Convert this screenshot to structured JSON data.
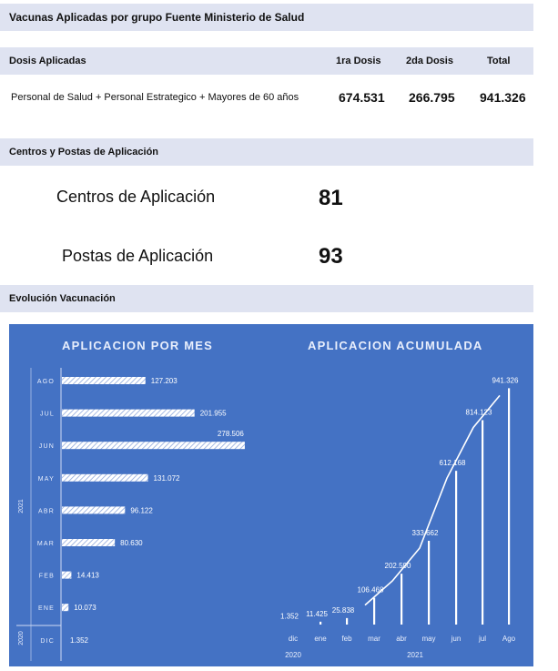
{
  "header": {
    "title": "Vacunas Aplicadas por grupo Fuente Ministerio de Salud"
  },
  "doses": {
    "header": {
      "label": "Dosis Aplicadas",
      "col1": "1ra Dosis",
      "col2": "2da Dosis",
      "col3": "Total"
    },
    "row": {
      "group": "Personal de Salud + Personal Estrategico + Mayores de 60 años",
      "dose1": "674.531",
      "dose2": "266.795",
      "total": "941.326"
    }
  },
  "centers": {
    "header": "Centros y Postas de Aplicación",
    "centers_label": "Centros de Aplicación",
    "centers_value": "81",
    "posts_label": "Postas de Aplicación",
    "posts_value": "93"
  },
  "evolution": {
    "header": "Evolución Vacunación"
  },
  "chart_data": [
    {
      "type": "bar",
      "orientation": "horizontal",
      "title": "APLICACION POR MES",
      "categories": [
        "DIC",
        "ENE",
        "FEB",
        "MAR",
        "ABR",
        "MAY",
        "JUN",
        "JUL",
        "AGO"
      ],
      "values": [
        1352,
        10073,
        14413,
        80630,
        96122,
        131072,
        278506,
        201955,
        127203
      ],
      "value_labels": [
        "1.352",
        "10.073",
        "14.413",
        "80.630",
        "96.122",
        "131.072",
        "278.506",
        "201.955",
        "127.203"
      ],
      "year_groups": [
        {
          "label": "2020",
          "categories": [
            "DIC"
          ]
        },
        {
          "label": "2021",
          "categories": [
            "ENE",
            "FEB",
            "MAR",
            "ABR",
            "MAY",
            "JUN",
            "JUL",
            "AGO"
          ]
        }
      ],
      "xlim": [
        0,
        280000
      ]
    },
    {
      "type": "bar",
      "title": "APLICACION  ACUMULADA",
      "categories": [
        "dic",
        "ene",
        "feb",
        "mar",
        "abr",
        "may",
        "jun",
        "jul",
        "Ago"
      ],
      "values": [
        1352,
        11425,
        25838,
        106468,
        202590,
        333662,
        612168,
        814123,
        941326
      ],
      "value_labels": [
        "1.352",
        "11.425",
        "25.838",
        "106.468",
        "202.590",
        "333.662",
        "612.168",
        "814.123",
        "941.326"
      ],
      "year_groups": [
        {
          "label": "2020",
          "categories": [
            "dic"
          ]
        },
        {
          "label": "2021",
          "categories": [
            "ene",
            "feb",
            "mar",
            "abr",
            "may",
            "jun",
            "jul",
            "Ago"
          ]
        }
      ],
      "ylim": [
        0,
        950000
      ]
    }
  ]
}
